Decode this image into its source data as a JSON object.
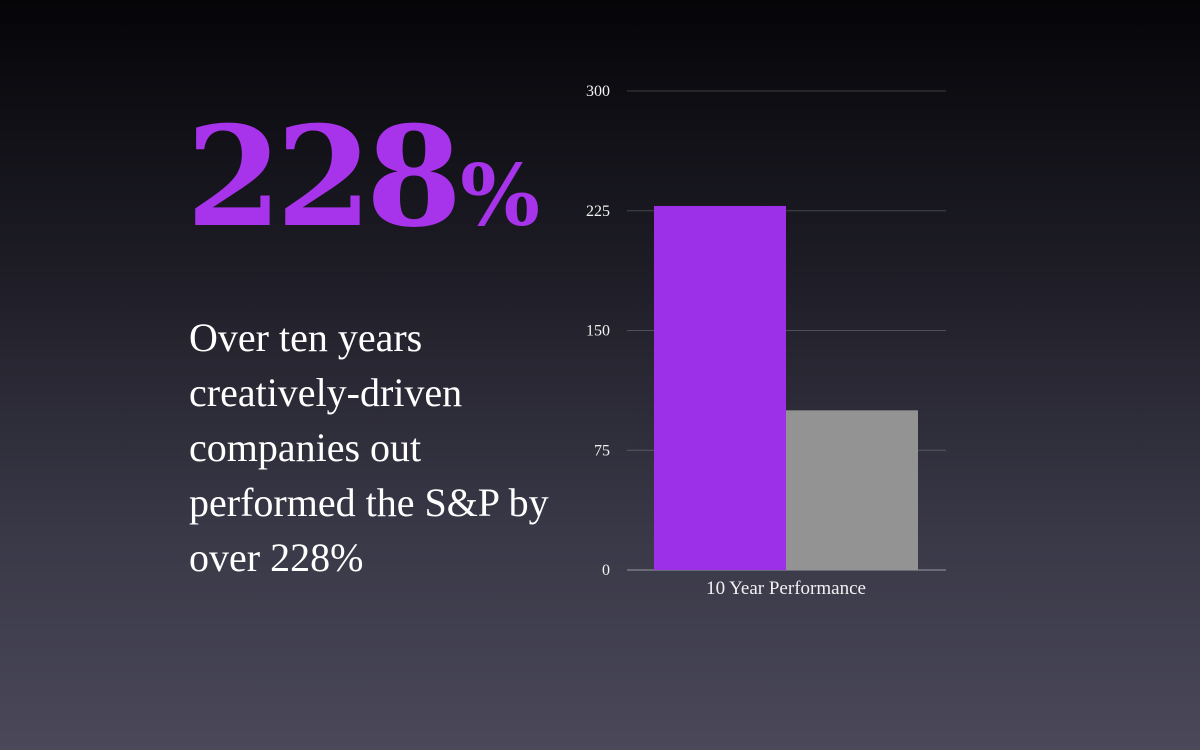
{
  "headline": {
    "value": "228",
    "suffix": "%",
    "color": "#a733ea"
  },
  "body_text": "Over ten years creatively-driven companies out performed the S&P by over 228%",
  "chart_data": {
    "type": "bar",
    "categories": [
      "10 Year Performance"
    ],
    "series": [
      {
        "values": [
          228
        ],
        "color": "#9b30e8"
      },
      {
        "values": [
          100
        ],
        "color": "#939393"
      }
    ],
    "ylim": [
      0,
      300
    ],
    "yticks": [
      "0",
      "75",
      "150",
      "225",
      "300"
    ],
    "grid": true,
    "legend": "none",
    "title": "",
    "xlabel": "",
    "ylabel": ""
  }
}
